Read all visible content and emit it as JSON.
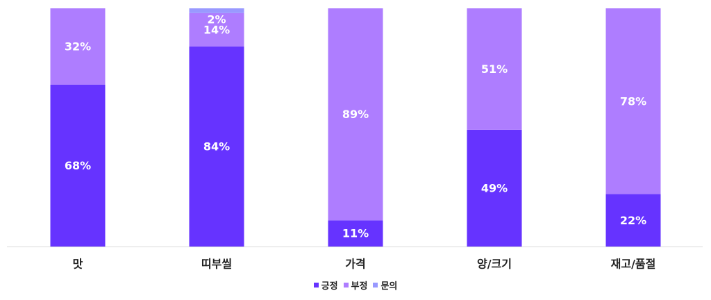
{
  "chart_data": {
    "type": "bar",
    "stacked": true,
    "percent": true,
    "categories": [
      "맛",
      "띠부씰",
      "가격",
      "양/크기",
      "재고/품절"
    ],
    "series": [
      {
        "name": "긍정",
        "color": "#6633ff",
        "values": [
          68,
          84,
          11,
          49,
          22
        ],
        "labels": [
          "68%",
          "84%",
          "11%",
          "49%",
          "22%"
        ]
      },
      {
        "name": "부정",
        "color": "#ae7dff",
        "values": [
          32,
          14,
          89,
          51,
          78
        ],
        "labels": [
          "32%",
          "14%",
          "89%",
          "51%",
          "78%"
        ]
      },
      {
        "name": "문의",
        "color": "#9999ff",
        "values": [
          0,
          2,
          0,
          0,
          0
        ],
        "labels": [
          "",
          "2%",
          "",
          "",
          ""
        ]
      }
    ],
    "ylim": [
      0,
      100
    ],
    "grid": false,
    "legend_position": "bottom"
  }
}
